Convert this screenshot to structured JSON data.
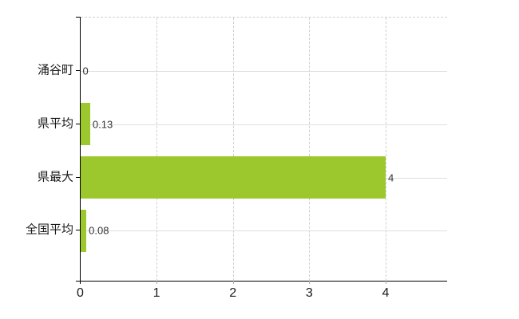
{
  "chart_data": {
    "type": "bar",
    "orientation": "horizontal",
    "title": "",
    "categories": [
      "涌谷町",
      "県平均",
      "県最大",
      "全国平均"
    ],
    "values": [
      0,
      0.13,
      4,
      0.08
    ],
    "value_labels": [
      "0",
      "0.13",
      "4",
      "0.08"
    ],
    "x_ticks": [
      0,
      1,
      2,
      3,
      4
    ],
    "x_tick_labels": [
      "0",
      "1",
      "2",
      "3",
      "4"
    ],
    "xlim": [
      0,
      4.8
    ],
    "grid": true,
    "legend": false,
    "colors": {
      "bar": "#9cc82e",
      "axis": "#000000",
      "grid_dashed": "#cfcfcf",
      "grid_solid": "#dbe0db",
      "value_label": "#333333",
      "tick_label": "#1a1a1a"
    }
  }
}
